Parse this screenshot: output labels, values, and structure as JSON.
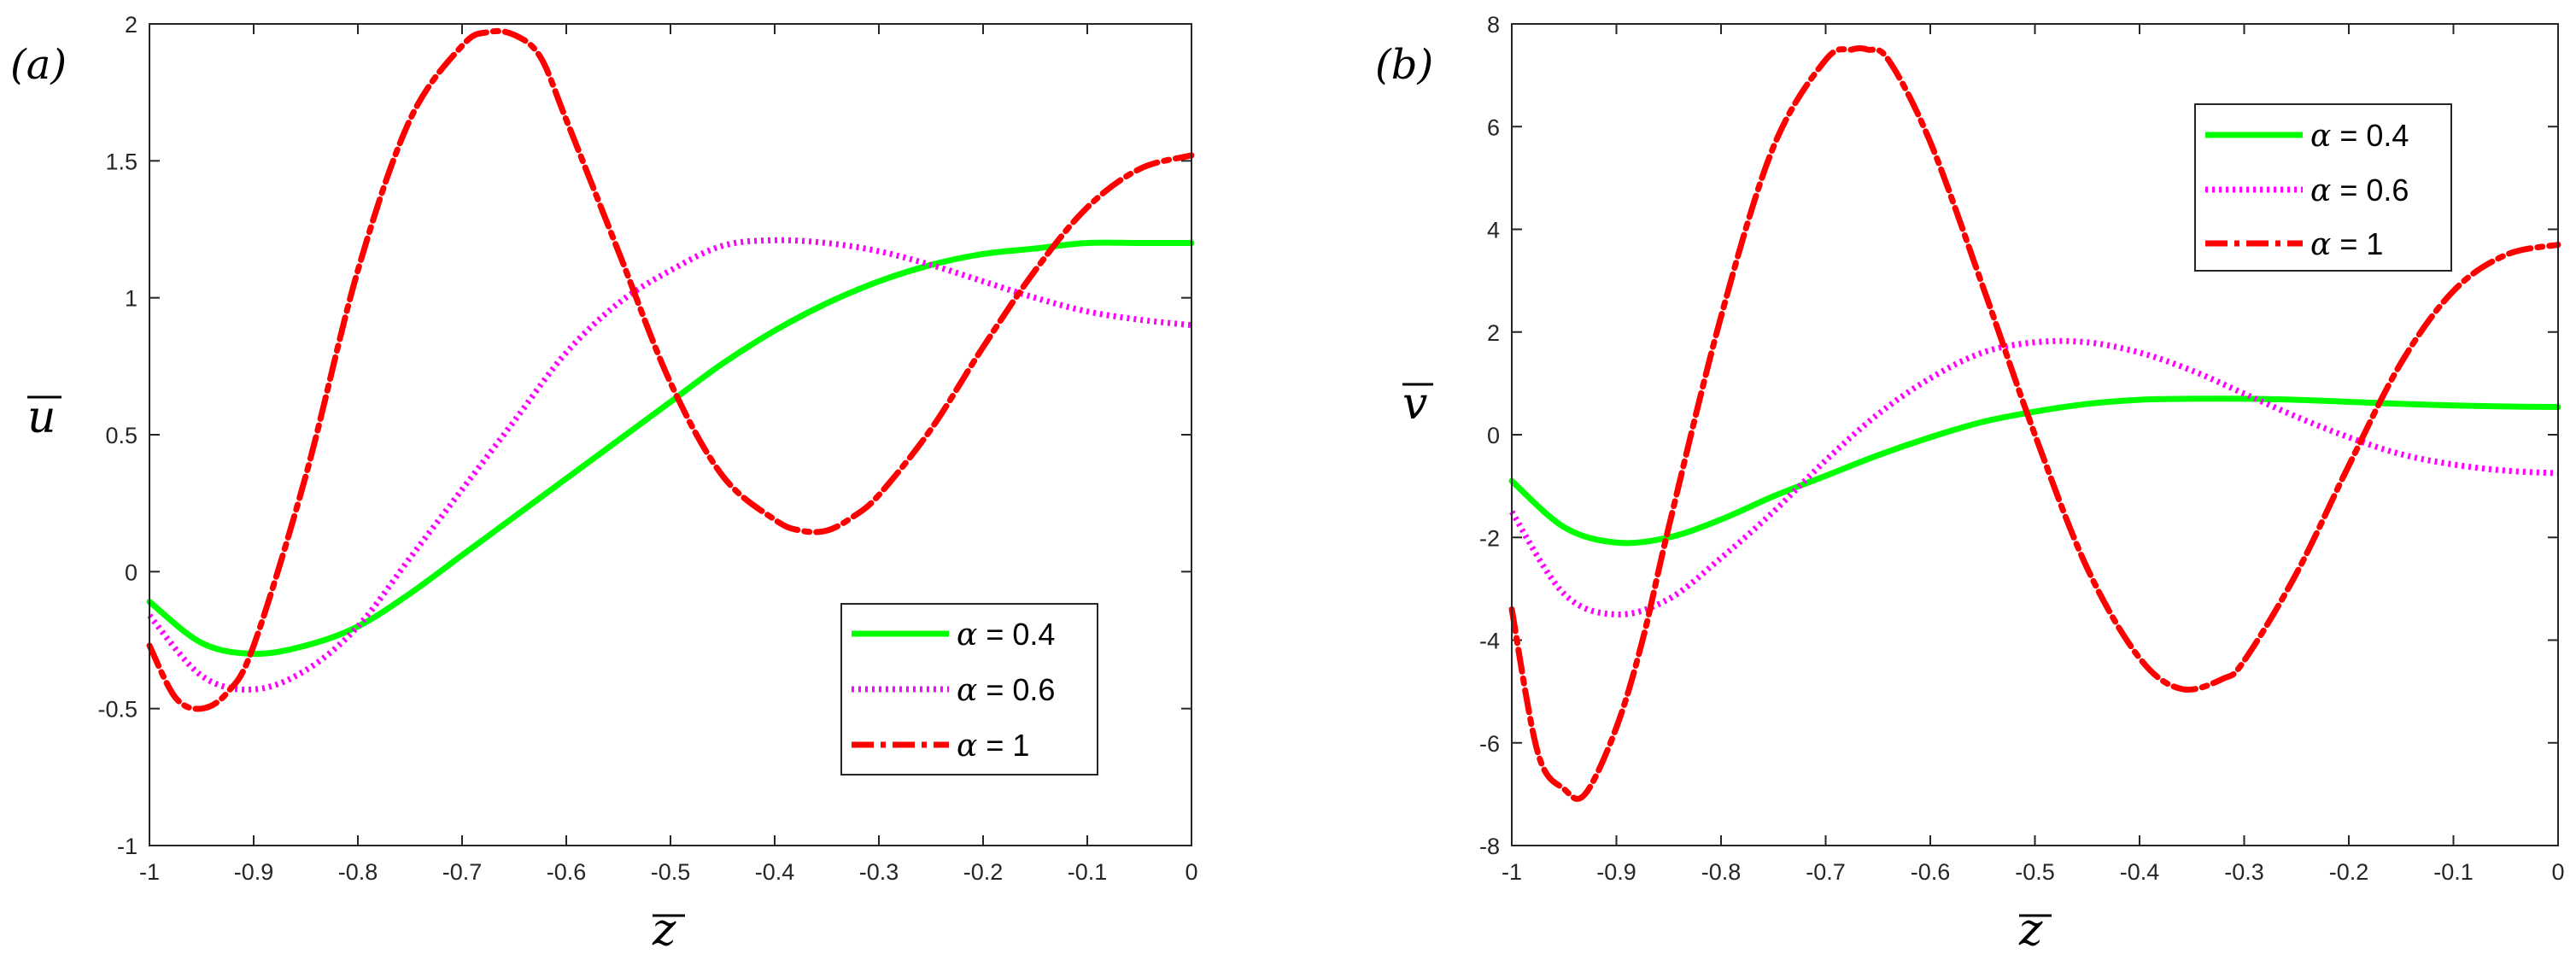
{
  "chart_data": [
    {
      "type": "line",
      "panel_label": "(a)",
      "xlabel": "z",
      "ylabel": "u",
      "xlim": [
        -1,
        0
      ],
      "ylim": [
        -1,
        2
      ],
      "xticks": [
        -1,
        -0.9,
        -0.8,
        -0.7,
        -0.6,
        -0.5,
        -0.4,
        -0.3,
        -0.2,
        -0.1,
        0
      ],
      "xtick_labels": [
        "-1",
        "-0.9",
        "-0.8",
        "-0.7",
        "-0.6",
        "-0.5",
        "-0.4",
        "-0.3",
        "-0.2",
        "-0.1",
        "0"
      ],
      "yticks": [
        -1,
        -0.5,
        0,
        0.5,
        1,
        1.5,
        2
      ],
      "ytick_labels": [
        "-1",
        "-0.5",
        "0",
        "0.5",
        "1",
        "1.5",
        "2"
      ],
      "legend_position": "bottom-right",
      "series": [
        {
          "name": "α = 0.4",
          "alpha_symbol": "α",
          "value_text": " = 0.4",
          "color": "#00ff00",
          "style": "solid",
          "x": [
            -1,
            -0.95,
            -0.9,
            -0.85,
            -0.8,
            -0.75,
            -0.7,
            -0.65,
            -0.6,
            -0.55,
            -0.5,
            -0.45,
            -0.4,
            -0.35,
            -0.3,
            -0.25,
            -0.2,
            -0.15,
            -0.1,
            -0.05,
            0
          ],
          "y": [
            -0.11,
            -0.26,
            -0.3,
            -0.27,
            -0.2,
            -0.08,
            0.06,
            0.2,
            0.34,
            0.48,
            0.62,
            0.76,
            0.88,
            0.98,
            1.06,
            1.12,
            1.16,
            1.18,
            1.2,
            1.2,
            1.2
          ]
        },
        {
          "name": "α = 0.6",
          "alpha_symbol": "α",
          "value_text": " = 0.6",
          "color": "#ff00ff",
          "style": "dotted",
          "x": [
            -1,
            -0.95,
            -0.9,
            -0.85,
            -0.8,
            -0.75,
            -0.7,
            -0.65,
            -0.6,
            -0.55,
            -0.5,
            -0.45,
            -0.4,
            -0.35,
            -0.3,
            -0.25,
            -0.2,
            -0.15,
            -0.1,
            -0.05,
            0
          ],
          "y": [
            -0.16,
            -0.38,
            -0.43,
            -0.36,
            -0.2,
            0.05,
            0.3,
            0.55,
            0.8,
            0.98,
            1.1,
            1.19,
            1.21,
            1.2,
            1.17,
            1.12,
            1.06,
            1.0,
            0.95,
            0.92,
            0.9
          ]
        },
        {
          "name": "α = 1",
          "alpha_symbol": "α",
          "value_text": " = 1",
          "color": "#ff0000",
          "style": "dashdot",
          "x": [
            -1,
            -0.975,
            -0.95,
            -0.925,
            -0.9,
            -0.85,
            -0.8,
            -0.75,
            -0.7,
            -0.675,
            -0.65,
            -0.625,
            -0.6,
            -0.55,
            -0.5,
            -0.45,
            -0.4,
            -0.375,
            -0.35,
            -0.325,
            -0.3,
            -0.25,
            -0.2,
            -0.15,
            -0.1,
            -0.05,
            0
          ],
          "y": [
            -0.27,
            -0.46,
            -0.5,
            -0.44,
            -0.27,
            0.35,
            1.1,
            1.65,
            1.92,
            1.97,
            1.96,
            1.88,
            1.65,
            1.17,
            0.69,
            0.35,
            0.19,
            0.15,
            0.15,
            0.2,
            0.28,
            0.52,
            0.82,
            1.1,
            1.33,
            1.47,
            1.52
          ]
        }
      ]
    },
    {
      "type": "line",
      "panel_label": "(b)",
      "xlabel": "z",
      "ylabel": "v",
      "xlim": [
        -1,
        0
      ],
      "ylim": [
        -8,
        8
      ],
      "xticks": [
        -1,
        -0.9,
        -0.8,
        -0.7,
        -0.6,
        -0.5,
        -0.4,
        -0.3,
        -0.2,
        -0.1,
        0
      ],
      "xtick_labels": [
        "-1",
        "-0.9",
        "-0.8",
        "-0.7",
        "-0.6",
        "-0.5",
        "-0.4",
        "-0.3",
        "-0.2",
        "-0.1",
        "0"
      ],
      "yticks": [
        -8,
        -6,
        -4,
        -2,
        0,
        2,
        4,
        6,
        8
      ],
      "ytick_labels": [
        "-8",
        "-6",
        "-4",
        "-2",
        "0",
        "2",
        "4",
        "6",
        "8"
      ],
      "legend_position": "top-right",
      "series": [
        {
          "name": "α = 0.4",
          "alpha_symbol": "α",
          "value_text": " = 0.4",
          "color": "#00ff00",
          "style": "solid",
          "x": [
            -1,
            -0.95,
            -0.9,
            -0.85,
            -0.8,
            -0.75,
            -0.7,
            -0.65,
            -0.6,
            -0.55,
            -0.5,
            -0.45,
            -0.4,
            -0.35,
            -0.3,
            -0.25,
            -0.2,
            -0.15,
            -0.1,
            -0.05,
            0
          ],
          "y": [
            -0.9,
            -1.8,
            -2.1,
            -2.0,
            -1.65,
            -1.2,
            -0.8,
            -0.4,
            -0.05,
            0.25,
            0.45,
            0.6,
            0.68,
            0.7,
            0.7,
            0.68,
            0.64,
            0.6,
            0.57,
            0.55,
            0.54
          ]
        },
        {
          "name": "α = 0.6",
          "alpha_symbol": "α",
          "value_text": " = 0.6",
          "color": "#ff00ff",
          "style": "dotted",
          "x": [
            -1,
            -0.95,
            -0.9,
            -0.85,
            -0.8,
            -0.75,
            -0.7,
            -0.65,
            -0.6,
            -0.55,
            -0.5,
            -0.45,
            -0.4,
            -0.35,
            -0.3,
            -0.25,
            -0.2,
            -0.15,
            -0.1,
            -0.05,
            0
          ],
          "y": [
            -1.5,
            -3.1,
            -3.5,
            -3.2,
            -2.4,
            -1.5,
            -0.5,
            0.4,
            1.1,
            1.6,
            1.8,
            1.8,
            1.6,
            1.25,
            0.8,
            0.35,
            -0.05,
            -0.38,
            -0.58,
            -0.7,
            -0.75
          ]
        },
        {
          "name": "α = 1",
          "alpha_symbol": "α",
          "value_text": " = 1",
          "color": "#ff0000",
          "style": "dashdot",
          "x": [
            -1,
            -0.975,
            -0.95,
            -0.93,
            -0.9,
            -0.875,
            -0.85,
            -0.8,
            -0.75,
            -0.7,
            -0.675,
            -0.66,
            -0.64,
            -0.6,
            -0.55,
            -0.5,
            -0.45,
            -0.4,
            -0.36,
            -0.32,
            -0.3,
            -0.25,
            -0.2,
            -0.15,
            -0.1,
            -0.05,
            0
          ],
          "y": [
            -3.4,
            -6.2,
            -6.9,
            -7.0,
            -5.7,
            -4.0,
            -1.8,
            2.3,
            5.6,
            7.3,
            7.5,
            7.5,
            7.3,
            5.7,
            2.9,
            0.0,
            -2.6,
            -4.35,
            -4.95,
            -4.75,
            -4.4,
            -2.7,
            -0.6,
            1.4,
            2.8,
            3.5,
            3.7
          ]
        }
      ]
    }
  ]
}
